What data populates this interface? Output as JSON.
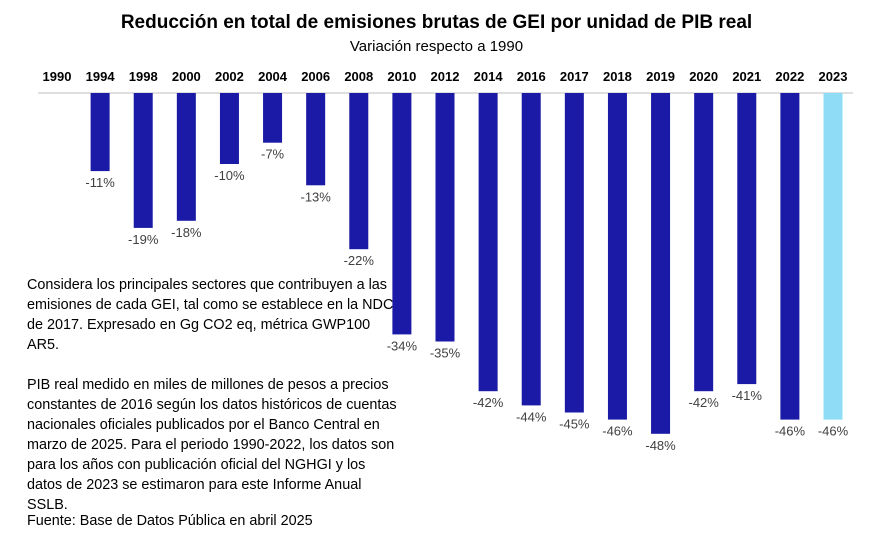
{
  "chart_data": {
    "type": "bar",
    "title": "Reducción en total de emisiones brutas de GEI por unidad de PIB real",
    "subtitle": "Variación respecto a 1990",
    "categories": [
      "1990",
      "1994",
      "1998",
      "2000",
      "2002",
      "2004",
      "2006",
      "2008",
      "2010",
      "2012",
      "2014",
      "2016",
      "2017",
      "2018",
      "2019",
      "2020",
      "2021",
      "2022",
      "2023"
    ],
    "values": [
      0,
      -11,
      -19,
      -18,
      -10,
      -7,
      -13,
      -22,
      -34,
      -35,
      -42,
      -44,
      -45,
      -46,
      -48,
      -42,
      -41,
      -46,
      -46
    ],
    "data_labels": [
      "",
      "-11%",
      "-19%",
      "-18%",
      "-10%",
      "-7%",
      "-13%",
      "-22%",
      "-34%",
      "-35%",
      "-42%",
      "-44%",
      "-45%",
      "-46%",
      "-48%",
      "-42%",
      "-41%",
      "-46%",
      "-46%"
    ],
    "ylim": [
      -50,
      0
    ],
    "xlabel": "",
    "ylabel": "",
    "grid": false,
    "colors": {
      "bar": "#1a1aa6",
      "highlight": "#8fdcf7",
      "axis": "#bfbfbf"
    },
    "highlight_category": "2023"
  },
  "notes": {
    "paragraph1": "Considera los principales sectores que contribuyen a las emisiones de cada GEI, tal como se establece en la NDC de 2017. Expresado en Gg CO2 eq, métrica GWP100 AR5.",
    "paragraph2": "PIB real medido en miles de millones de pesos a precios constantes de 2016 según los datos históricos de cuentas nacionales oficiales publicados por el Banco Central en marzo de 2025. Para el periodo 1990-2022, los datos son para los años con publicación oficial del NGHGI y los datos de 2023 se estimaron para este Informe Anual SSLB.",
    "source": "Fuente: Base de Datos Pública en abril 2025"
  }
}
